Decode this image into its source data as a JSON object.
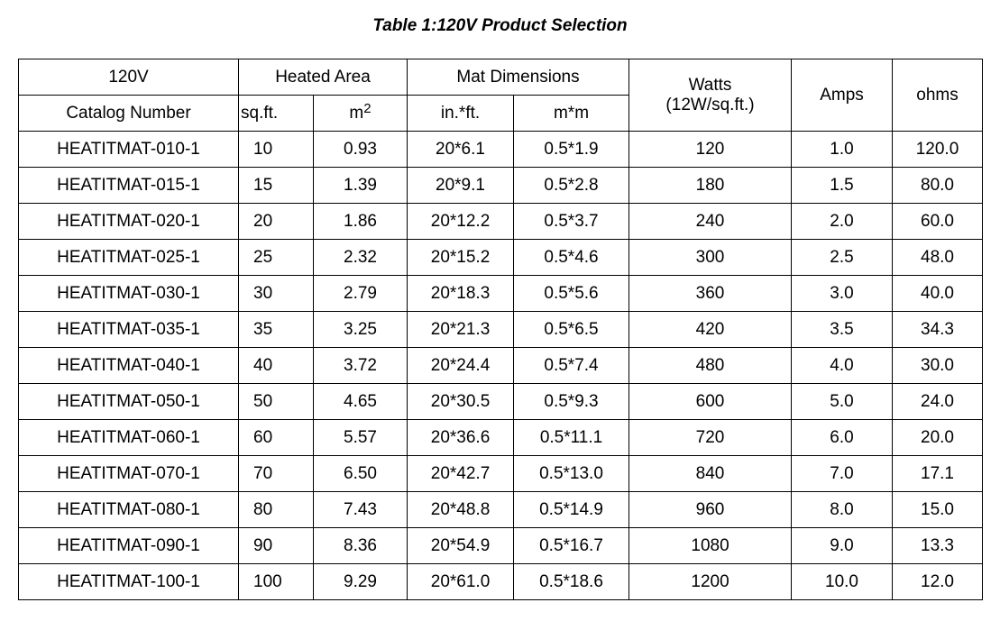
{
  "title": "Table 1:120V Product Selection",
  "header": {
    "voltage": "120V",
    "catalog_number": "Catalog Number",
    "heated_area": "Heated Area",
    "sqft": "sq.ft.",
    "sqm": {
      "base": "m",
      "sup": "2"
    },
    "mat_dimensions": "Mat Dimensions",
    "in_ft": "in.*ft.",
    "m_m": "m*m",
    "watts": [
      "Watts",
      "(12W/sq.ft.)"
    ],
    "amps": "Amps",
    "ohms": "ohms"
  },
  "table": {
    "rows": [
      [
        "HEATITMAT-010-1",
        "10",
        "0.93",
        "20*6.1",
        "0.5*1.9",
        "120",
        "1.0",
        "120.0"
      ],
      [
        "HEATITMAT-015-1",
        "15",
        "1.39",
        "20*9.1",
        "0.5*2.8",
        "180",
        "1.5",
        "80.0"
      ],
      [
        "HEATITMAT-020-1",
        "20",
        "1.86",
        "20*12.2",
        "0.5*3.7",
        "240",
        "2.0",
        "60.0"
      ],
      [
        "HEATITMAT-025-1",
        "25",
        "2.32",
        "20*15.2",
        "0.5*4.6",
        "300",
        "2.5",
        "48.0"
      ],
      [
        "HEATITMAT-030-1",
        "30",
        "2.79",
        "20*18.3",
        "0.5*5.6",
        "360",
        "3.0",
        "40.0"
      ],
      [
        "HEATITMAT-035-1",
        "35",
        "3.25",
        "20*21.3",
        "0.5*6.5",
        "420",
        "3.5",
        "34.3"
      ],
      [
        "HEATITMAT-040-1",
        "40",
        "3.72",
        "20*24.4",
        "0.5*7.4",
        "480",
        "4.0",
        "30.0"
      ],
      [
        "HEATITMAT-050-1",
        "50",
        "4.65",
        "20*30.5",
        "0.5*9.3",
        "600",
        "5.0",
        "24.0"
      ],
      [
        "HEATITMAT-060-1",
        "60",
        "5.57",
        "20*36.6",
        "0.5*11.1",
        "720",
        "6.0",
        "20.0"
      ],
      [
        "HEATITMAT-070-1",
        "70",
        "6.50",
        "20*42.7",
        "0.5*13.0",
        "840",
        "7.0",
        "17.1"
      ],
      [
        "HEATITMAT-080-1",
        "80",
        "7.43",
        "20*48.8",
        "0.5*14.9",
        "960",
        "8.0",
        "15.0"
      ],
      [
        "HEATITMAT-090-1",
        "90",
        "8.36",
        "20*54.9",
        "0.5*16.7",
        "1080",
        "9.0",
        "13.3"
      ],
      [
        "HEATITMAT-100-1",
        "100",
        "9.29",
        "20*61.0",
        "0.5*18.6",
        "1200",
        "10.0",
        "12.0"
      ]
    ]
  }
}
